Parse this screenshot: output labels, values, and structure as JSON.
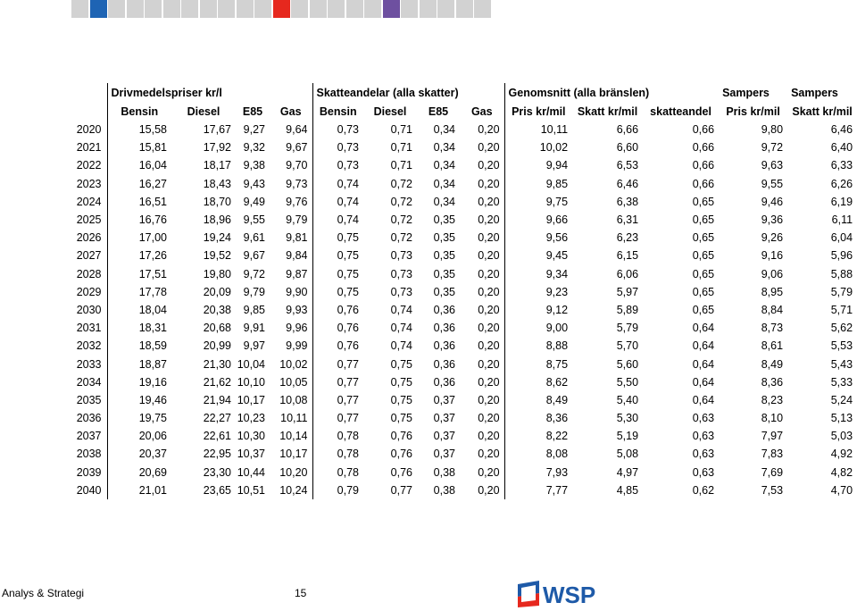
{
  "swatch_colors": [
    "#d2d2d2",
    "#1e64b4",
    "#d2d2d2",
    "#d2d2d2",
    "#d2d2d2",
    "#d2d2d2",
    "#d2d2d2",
    "#d2d2d2",
    "#d2d2d2",
    "#d2d2d2",
    "#d2d2d2",
    "#e6281e",
    "#d2d2d2",
    "#d2d2d2",
    "#d2d2d2",
    "#d2d2d2",
    "#d2d2d2",
    "#6e50a0",
    "#d2d2d2",
    "#d2d2d2",
    "#d2d2d2",
    "#d2d2d2",
    "#d2d2d2"
  ],
  "header": {
    "group_fuel": "Drivmedelspriser kr/l",
    "group_tax": "Skatteandelar (alla skatter)",
    "group_avg": "Genomsnitt (alla bränslen)",
    "group_sampers1": "Sampers",
    "group_sampers2": "Sampers",
    "cols": [
      "Bensin",
      "Diesel",
      "E85",
      "Gas",
      "Bensin",
      "Diesel",
      "E85",
      "Gas",
      "Pris kr/mil",
      "Skatt kr/mil",
      "skatteandel",
      "Pris kr/mil",
      "Skatt kr/mil"
    ]
  },
  "rows": [
    [
      "2020",
      "15,58",
      "17,67",
      "9,27",
      "9,64",
      "0,73",
      "0,71",
      "0,34",
      "0,20",
      "10,11",
      "6,66",
      "0,66",
      "9,80",
      "6,46"
    ],
    [
      "2021",
      "15,81",
      "17,92",
      "9,32",
      "9,67",
      "0,73",
      "0,71",
      "0,34",
      "0,20",
      "10,02",
      "6,60",
      "0,66",
      "9,72",
      "6,40"
    ],
    [
      "2022",
      "16,04",
      "18,17",
      "9,38",
      "9,70",
      "0,73",
      "0,71",
      "0,34",
      "0,20",
      "9,94",
      "6,53",
      "0,66",
      "9,63",
      "6,33"
    ],
    [
      "2023",
      "16,27",
      "18,43",
      "9,43",
      "9,73",
      "0,74",
      "0,72",
      "0,34",
      "0,20",
      "9,85",
      "6,46",
      "0,66",
      "9,55",
      "6,26"
    ],
    [
      "2024",
      "16,51",
      "18,70",
      "9,49",
      "9,76",
      "0,74",
      "0,72",
      "0,34",
      "0,20",
      "9,75",
      "6,38",
      "0,65",
      "9,46",
      "6,19"
    ],
    [
      "2025",
      "16,76",
      "18,96",
      "9,55",
      "9,79",
      "0,74",
      "0,72",
      "0,35",
      "0,20",
      "9,66",
      "6,31",
      "0,65",
      "9,36",
      "6,11"
    ],
    [
      "2026",
      "17,00",
      "19,24",
      "9,61",
      "9,81",
      "0,75",
      "0,72",
      "0,35",
      "0,20",
      "9,56",
      "6,23",
      "0,65",
      "9,26",
      "6,04"
    ],
    [
      "2027",
      "17,26",
      "19,52",
      "9,67",
      "9,84",
      "0,75",
      "0,73",
      "0,35",
      "0,20",
      "9,45",
      "6,15",
      "0,65",
      "9,16",
      "5,96"
    ],
    [
      "2028",
      "17,51",
      "19,80",
      "9,72",
      "9,87",
      "0,75",
      "0,73",
      "0,35",
      "0,20",
      "9,34",
      "6,06",
      "0,65",
      "9,06",
      "5,88"
    ],
    [
      "2029",
      "17,78",
      "20,09",
      "9,79",
      "9,90",
      "0,75",
      "0,73",
      "0,35",
      "0,20",
      "9,23",
      "5,97",
      "0,65",
      "8,95",
      "5,79"
    ],
    [
      "2030",
      "18,04",
      "20,38",
      "9,85",
      "9,93",
      "0,76",
      "0,74",
      "0,36",
      "0,20",
      "9,12",
      "5,89",
      "0,65",
      "8,84",
      "5,71"
    ],
    [
      "2031",
      "18,31",
      "20,68",
      "9,91",
      "9,96",
      "0,76",
      "0,74",
      "0,36",
      "0,20",
      "9,00",
      "5,79",
      "0,64",
      "8,73",
      "5,62"
    ],
    [
      "2032",
      "18,59",
      "20,99",
      "9,97",
      "9,99",
      "0,76",
      "0,74",
      "0,36",
      "0,20",
      "8,88",
      "5,70",
      "0,64",
      "8,61",
      "5,53"
    ],
    [
      "2033",
      "18,87",
      "21,30",
      "10,04",
      "10,02",
      "0,77",
      "0,75",
      "0,36",
      "0,20",
      "8,75",
      "5,60",
      "0,64",
      "8,49",
      "5,43"
    ],
    [
      "2034",
      "19,16",
      "21,62",
      "10,10",
      "10,05",
      "0,77",
      "0,75",
      "0,36",
      "0,20",
      "8,62",
      "5,50",
      "0,64",
      "8,36",
      "5,33"
    ],
    [
      "2035",
      "19,46",
      "21,94",
      "10,17",
      "10,08",
      "0,77",
      "0,75",
      "0,37",
      "0,20",
      "8,49",
      "5,40",
      "0,64",
      "8,23",
      "5,24"
    ],
    [
      "2036",
      "19,75",
      "22,27",
      "10,23",
      "10,11",
      "0,77",
      "0,75",
      "0,37",
      "0,20",
      "8,36",
      "5,30",
      "0,63",
      "8,10",
      "5,13"
    ],
    [
      "2037",
      "20,06",
      "22,61",
      "10,30",
      "10,14",
      "0,78",
      "0,76",
      "0,37",
      "0,20",
      "8,22",
      "5,19",
      "0,63",
      "7,97",
      "5,03"
    ],
    [
      "2038",
      "20,37",
      "22,95",
      "10,37",
      "10,17",
      "0,78",
      "0,76",
      "0,37",
      "0,20",
      "8,08",
      "5,08",
      "0,63",
      "7,83",
      "4,92"
    ],
    [
      "2039",
      "20,69",
      "23,30",
      "10,44",
      "10,20",
      "0,78",
      "0,76",
      "0,38",
      "0,20",
      "7,93",
      "4,97",
      "0,63",
      "7,69",
      "4,82"
    ],
    [
      "2040",
      "21,01",
      "23,65",
      "10,51",
      "10,24",
      "0,79",
      "0,77",
      "0,38",
      "0,20",
      "7,77",
      "4,85",
      "0,62",
      "7,53",
      "4,70"
    ]
  ],
  "footer": {
    "left": "Analys & Strategi",
    "page": "15",
    "logo_text": "WSP",
    "logo_color": "#1e5aa8",
    "logo_flag_color": "#e6281e"
  }
}
